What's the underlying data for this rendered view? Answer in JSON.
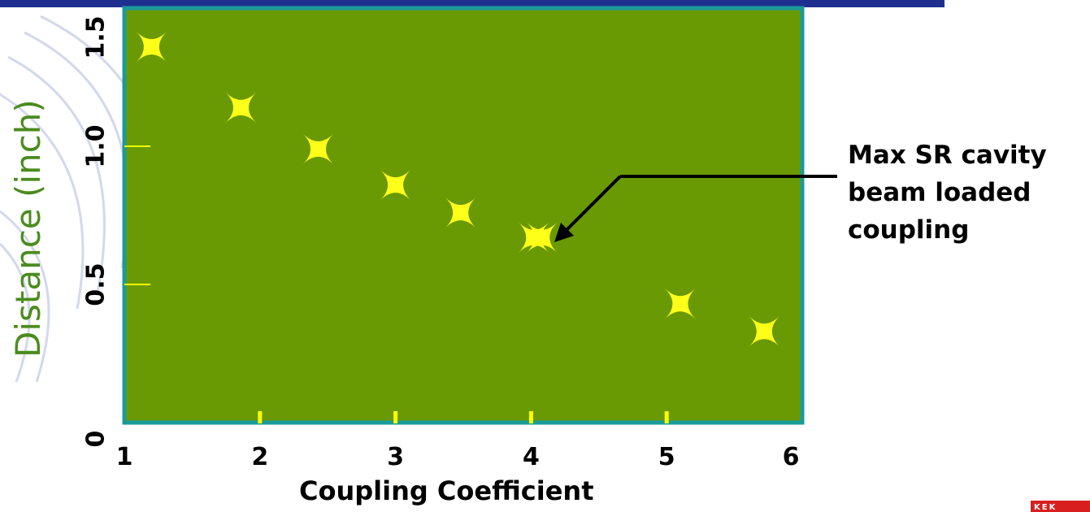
{
  "chart_data": {
    "type": "scatter",
    "title": "",
    "xlabel": "Coupling Coefficient",
    "ylabel": "Distance (inch)",
    "xlim": [
      1,
      6
    ],
    "ylim": [
      0,
      1.5
    ],
    "x_ticks": [
      "1",
      "2",
      "3",
      "4",
      "5",
      "6"
    ],
    "y_ticks": [
      "0",
      "0.5",
      "1.0",
      "1.5"
    ],
    "grid": false,
    "series": [
      {
        "points": [
          {
            "x": 1.2,
            "y": 1.36
          },
          {
            "x": 1.86,
            "y": 1.14
          },
          {
            "x": 2.43,
            "y": 0.99
          },
          {
            "x": 3.0,
            "y": 0.86
          },
          {
            "x": 3.48,
            "y": 0.76
          },
          {
            "x": 4.02,
            "y": 0.67
          },
          {
            "x": 4.08,
            "y": 0.67
          },
          {
            "x": 5.1,
            "y": 0.43
          },
          {
            "x": 5.72,
            "y": 0.33
          }
        ]
      }
    ],
    "annotations": [
      {
        "text_lines": [
          "Max SR cavity",
          "beam loaded",
          "coupling"
        ],
        "points_to": {
          "x": 4.05,
          "y": 0.67
        }
      }
    ]
  },
  "colors": {
    "plot_background": "#6a9a03",
    "plot_border": "#1a9a9a",
    "marker": "#ffff1a",
    "tick_marks": "#ffff00",
    "ylabel": "#4a8c1e",
    "header_bar": "#1f2f8f",
    "logo": "#d81e1e"
  },
  "marker_shape": "four-point-star",
  "logo_text": "KEK"
}
